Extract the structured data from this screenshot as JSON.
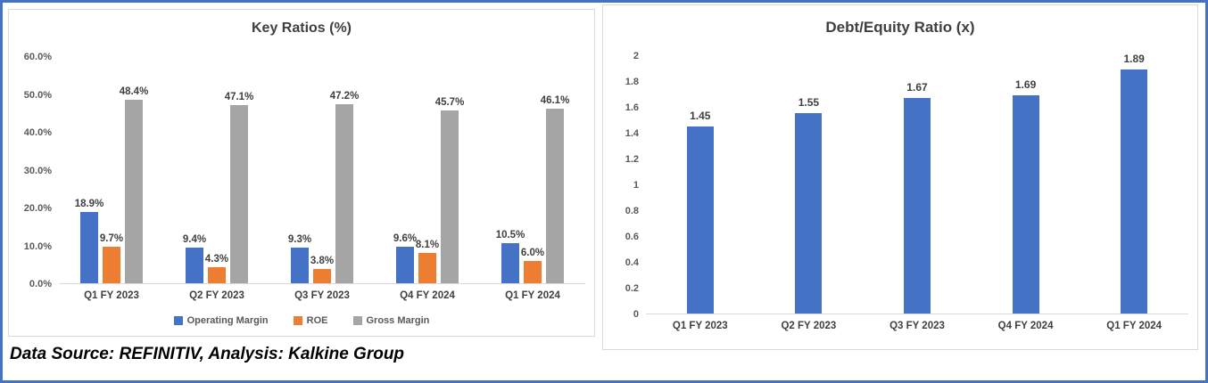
{
  "caption": "Data Source: REFINITIV, Analysis: Kalkine Group",
  "colors": {
    "frame_border": "#4472C4",
    "panel_border": "#D9D9D9",
    "operating_margin_blue": "#4472C4",
    "roe_orange": "#ED7D31",
    "gross_margin_gray": "#A5A5A5",
    "axis_text": "#595959",
    "label_text": "#404040"
  },
  "chart_data": [
    {
      "type": "bar",
      "title": "Key Ratios (%)",
      "categories": [
        "Q1 FY 2023",
        "Q2 FY 2023",
        "Q3 FY 2023",
        "Q4 FY 2024",
        "Q1 FY 2024"
      ],
      "series": [
        {
          "name": "Operating Margin",
          "color": "#4472C4",
          "values": [
            18.9,
            9.4,
            9.3,
            9.6,
            10.5
          ],
          "labels": [
            "18.9%",
            "9.4%",
            "9.3%",
            "9.6%",
            "10.5%"
          ]
        },
        {
          "name": "ROE",
          "color": "#ED7D31",
          "values": [
            9.7,
            4.3,
            3.8,
            8.1,
            6.0
          ],
          "labels": [
            "9.7%",
            "4.3%",
            "3.8%",
            "8.1%",
            "6.0%"
          ]
        },
        {
          "name": "Gross Margin",
          "color": "#A5A5A5",
          "values": [
            48.4,
            47.1,
            47.2,
            45.7,
            46.1
          ],
          "labels": [
            "48.4%",
            "47.1%",
            "47.2%",
            "45.7%",
            "46.1%"
          ]
        }
      ],
      "ylim": [
        0,
        60
      ],
      "yticks": [
        {
          "value": 0,
          "label": "0.0%"
        },
        {
          "value": 10,
          "label": "10.0%"
        },
        {
          "value": 20,
          "label": "20.0%"
        },
        {
          "value": 30,
          "label": "30.0%"
        },
        {
          "value": 40,
          "label": "40.0%"
        },
        {
          "value": 50,
          "label": "50.0%"
        },
        {
          "value": 60,
          "label": "60.0%"
        }
      ],
      "grid": false,
      "legend": true,
      "legend_position": "bottom"
    },
    {
      "type": "bar",
      "title": "Debt/Equity Ratio (x)",
      "categories": [
        "Q1 FY 2023",
        "Q2 FY 2023",
        "Q3 FY 2023",
        "Q4 FY 2024",
        "Q1 FY 2024"
      ],
      "series": [
        {
          "name": "Debt/Equity Ratio",
          "color": "#4472C4",
          "values": [
            1.45,
            1.55,
            1.67,
            1.69,
            1.89
          ],
          "labels": [
            "1.45",
            "1.55",
            "1.67",
            "1.69",
            "1.89"
          ]
        }
      ],
      "ylim": [
        0,
        2
      ],
      "yticks": [
        {
          "value": 0,
          "label": "0"
        },
        {
          "value": 0.2,
          "label": "0.2"
        },
        {
          "value": 0.4,
          "label": "0.4"
        },
        {
          "value": 0.6,
          "label": "0.6"
        },
        {
          "value": 0.8,
          "label": "0.8"
        },
        {
          "value": 1,
          "label": "1"
        },
        {
          "value": 1.2,
          "label": "1.2"
        },
        {
          "value": 1.4,
          "label": "1.4"
        },
        {
          "value": 1.6,
          "label": "1.6"
        },
        {
          "value": 1.8,
          "label": "1.8"
        },
        {
          "value": 2,
          "label": "2"
        }
      ],
      "grid": false,
      "legend": false
    }
  ]
}
